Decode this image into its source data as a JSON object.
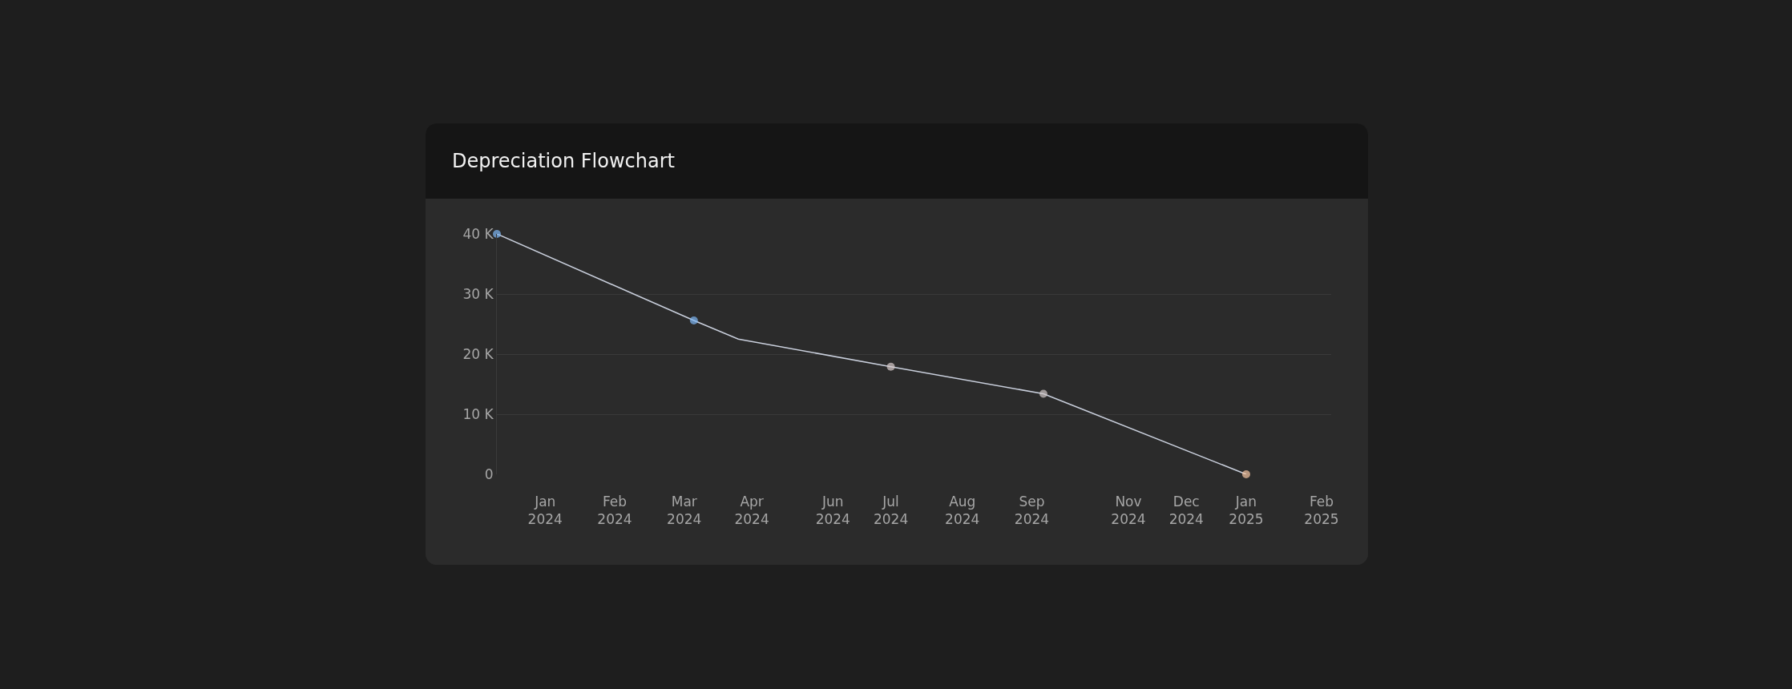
{
  "chart_data": {
    "type": "line",
    "title": "Depreciation Flowchart",
    "x": [
      "2023-12-10",
      "2024-03-21",
      "2024-04-13",
      "2024-07-01",
      "2024-09-18",
      "2025-01-01"
    ],
    "series": [
      {
        "color": "#c9cfdc",
        "colors": [
          "#7fb8f5",
          "#7fb8f5",
          null,
          "#d8cccc",
          "#d0c8c8",
          "#f7c6a3"
        ],
        "values": [
          40000,
          25600,
          22500,
          17900,
          13400,
          0
        ]
      }
    ],
    "xlim": [
      "2023-12-10",
      "2025-02-14"
    ],
    "xticks": [
      {
        "value": "2024-01-04",
        "label": "Jan\n2024"
      },
      {
        "value": "2024-02-09",
        "label": "Feb\n2024"
      },
      {
        "value": "2024-03-16",
        "label": "Mar\n2024"
      },
      {
        "value": "2024-04-20",
        "label": "Apr\n2024"
      },
      {
        "value": "2024-06-01",
        "label": "Jun\n2024"
      },
      {
        "value": "2024-07-01",
        "label": "Jul\n2024"
      },
      {
        "value": "2024-08-07",
        "label": "Aug\n2024"
      },
      {
        "value": "2024-09-12",
        "label": "Sep\n2024"
      },
      {
        "value": "2024-11-01",
        "label": "Nov\n2024"
      },
      {
        "value": "2024-12-01",
        "label": "Dec\n2024"
      },
      {
        "value": "2025-01-01",
        "label": "Jan\n2025"
      },
      {
        "value": "2025-02-09",
        "label": "Feb\n2025"
      }
    ],
    "ylim": [
      0,
      40000
    ],
    "yticks": [
      {
        "value": 0,
        "label": "0"
      },
      {
        "value": 10000,
        "label": "10 K"
      },
      {
        "value": 20000,
        "label": "20 K"
      },
      {
        "value": 30000,
        "label": "30 K"
      },
      {
        "value": 40000,
        "label": "40 K"
      }
    ],
    "grid": "y",
    "legend": false,
    "marker": "circle",
    "line_style": "solid"
  }
}
